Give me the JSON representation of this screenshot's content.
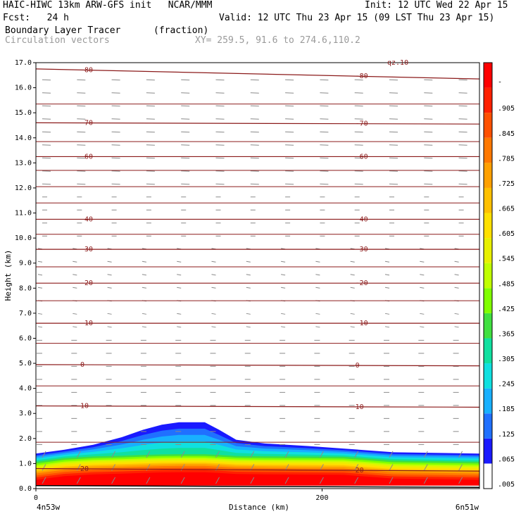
{
  "header": {
    "title": "HAIC-HIWC 13km ARW-GFS init   NCAR/MMM",
    "init": "Init: 12 UTC Wed 22 Apr 15",
    "fcst": "Fcst:   24 h",
    "valid": "Valid: 12 UTC Thu 23 Apr 15 (09 LST Thu 23 Apr 15)",
    "field": "Boundary Layer Tracer",
    "field_units": "(fraction)",
    "vectors": "Circulation vectors",
    "xy": "XY= 259.5, 91.6 to 274.6,110.2"
  },
  "chart_data": {
    "type": "heatmap",
    "xlabel": "Distance (km)",
    "ylabel": "Height (km)",
    "xlim": [
      0,
      310
    ],
    "ylim": [
      0,
      17
    ],
    "x_ticks": [
      {
        "value": 0,
        "label": "0"
      },
      {
        "value": 200,
        "label": "200"
      }
    ],
    "x_end_labels": {
      "left": "4n53w",
      "right": "6n51w"
    },
    "y_ticks": [
      "0.0",
      "1.0",
      "2.0",
      "3.0",
      "4.0",
      "5.0",
      "6.0",
      "7.0",
      "8.0",
      "9.0",
      "10.0",
      "11.0",
      "12.0",
      "13.0",
      "14.0",
      "15.0",
      "16.0",
      "17.0"
    ],
    "colorbar": {
      "labels": [
        ".005",
        ".065",
        ".125",
        ".185",
        ".245",
        ".305",
        ".365",
        ".425",
        ".485",
        ".545",
        ".605",
        ".665",
        ".725",
        ".785",
        ".845",
        ".905",
        "-"
      ],
      "colors": [
        "#ffffff",
        "#1a1aff",
        "#2070ff",
        "#18b0ff",
        "#10e0e0",
        "#10e0a0",
        "#40e040",
        "#80ff00",
        "#c0ff00",
        "#e8f000",
        "#ffe000",
        "#ffc000",
        "#ffa000",
        "#ff7800",
        "#ff5000",
        "#ff2000",
        "#ff0000"
      ]
    },
    "tracer_top_km": [
      {
        "x": 0,
        "top": 1.4
      },
      {
        "x": 20,
        "top": 1.55
      },
      {
        "x": 40,
        "top": 1.75
      },
      {
        "x": 60,
        "top": 2.05
      },
      {
        "x": 75,
        "top": 2.35
      },
      {
        "x": 88,
        "top": 2.55
      },
      {
        "x": 100,
        "top": 2.65
      },
      {
        "x": 118,
        "top": 2.65
      },
      {
        "x": 128,
        "top": 2.35
      },
      {
        "x": 140,
        "top": 1.95
      },
      {
        "x": 160,
        "top": 1.8
      },
      {
        "x": 190,
        "top": 1.7
      },
      {
        "x": 215,
        "top": 1.6
      },
      {
        "x": 250,
        "top": 1.45
      },
      {
        "x": 310,
        "top": 1.4
      }
    ],
    "isotherms": [
      {
        "label": "20",
        "left": 0.8,
        "right": 0.7
      },
      {
        "label": "10",
        "left": 3.3,
        "right": 3.25
      },
      {
        "label": "0",
        "left": 4.95,
        "right": 4.9
      },
      {
        "label": "-10",
        "left": 6.6,
        "right": 6.6
      },
      {
        "label": "-20",
        "left": 8.2,
        "right": 8.2
      },
      {
        "label": "-30",
        "left": 9.55,
        "right": 9.55
      },
      {
        "label": "-40",
        "left": 10.75,
        "right": 10.75
      },
      {
        "label": "-60",
        "left": 13.25,
        "right": 13.25
      },
      {
        "label": "-70",
        "left": 14.6,
        "right": 14.55
      },
      {
        "label": "-80",
        "left": 16.75,
        "right": 16.35
      }
    ],
    "extra_contours_km": [
      1.85,
      4.1,
      5.8,
      7.5,
      8.85,
      10.15,
      11.4,
      12.05,
      12.7,
      13.85,
      15.35
    ],
    "top_annotation": "qz.10",
    "grid": false
  }
}
